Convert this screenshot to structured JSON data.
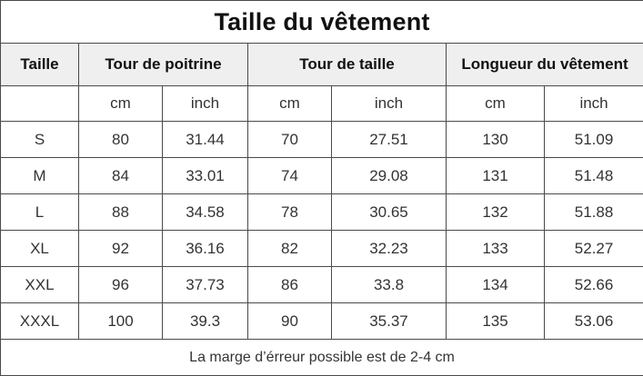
{
  "title": "Taille du vêtement",
  "headers": {
    "size": "Taille",
    "chest": "Tour de poitrine",
    "waist": "Tour de taille",
    "length": "Longueur du vêtement"
  },
  "units": {
    "chest_cm": "cm",
    "chest_inch": "inch",
    "waist_cm": "cm",
    "waist_inch": "inch",
    "length_cm": "cm",
    "length_inch": "inch"
  },
  "rows": [
    {
      "size": "S",
      "chest_cm": "80",
      "chest_inch": "31.44",
      "waist_cm": "70",
      "waist_inch": "27.51",
      "length_cm": "130",
      "length_inch": "51.09"
    },
    {
      "size": "M",
      "chest_cm": "84",
      "chest_inch": "33.01",
      "waist_cm": "74",
      "waist_inch": "29.08",
      "length_cm": "131",
      "length_inch": "51.48"
    },
    {
      "size": "L",
      "chest_cm": "88",
      "chest_inch": "34.58",
      "waist_cm": "78",
      "waist_inch": "30.65",
      "length_cm": "132",
      "length_inch": "51.88"
    },
    {
      "size": "XL",
      "chest_cm": "92",
      "chest_inch": "36.16",
      "waist_cm": "82",
      "waist_inch": "32.23",
      "length_cm": "133",
      "length_inch": "52.27"
    },
    {
      "size": "XXL",
      "chest_cm": "96",
      "chest_inch": "37.73",
      "waist_cm": "86",
      "waist_inch": "33.8",
      "length_cm": "134",
      "length_inch": "52.66"
    },
    {
      "size": "XXXL",
      "chest_cm": "100",
      "chest_inch": "39.3",
      "waist_cm": "90",
      "waist_inch": "35.37",
      "length_cm": "135",
      "length_inch": "53.06"
    }
  ],
  "footer": "La marge d’érreur possible est de 2-4 cm",
  "colors": {
    "header_bg": "#efefef",
    "border": "#4a4a4a",
    "text": "#333333"
  }
}
